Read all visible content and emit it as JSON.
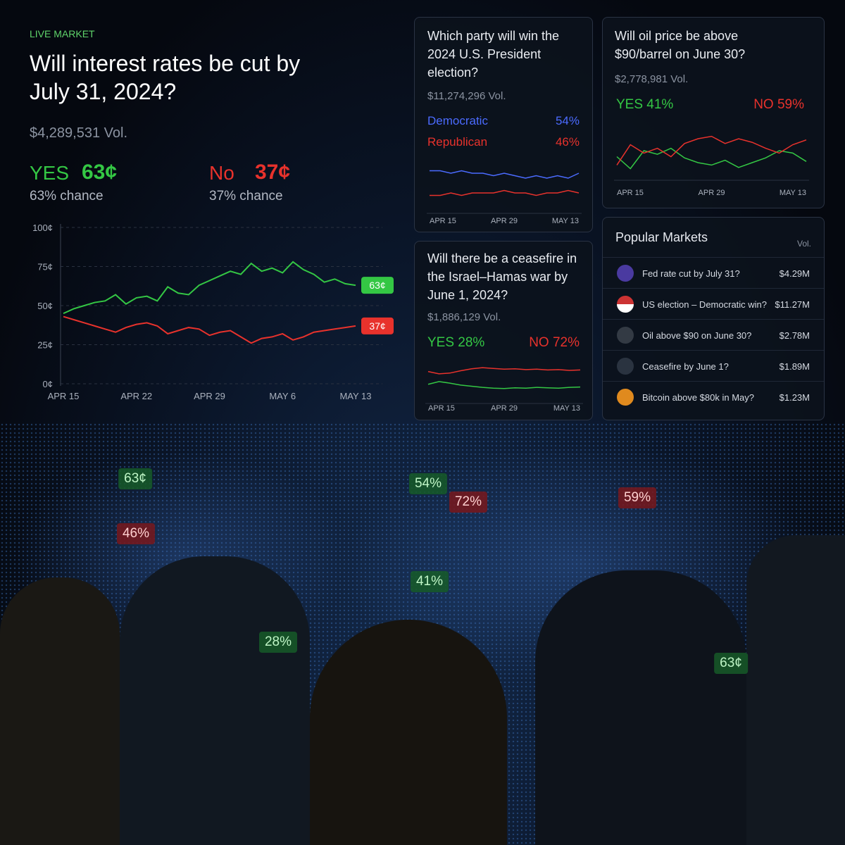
{
  "header": {
    "tag": "LIVE MARKET",
    "title": "Will interest rates be cut by July 31, 2024?",
    "volume": "$4,289,531 Vol.",
    "yes": {
      "label": "YES",
      "price": "63¢",
      "chance": "63% chance"
    },
    "no": {
      "label": "No",
      "price": "37¢",
      "chance": "37% chance"
    }
  },
  "cards": [
    {
      "title": "Which party will win the 2024 U.S. President election?",
      "volume": "$11,274,296 Vol."
    },
    {
      "title": "Will oil price be above $90/barrel on June 30?",
      "volume": "$2,778,981 Vol.",
      "yes": "YES 41%",
      "no": "NO 59%"
    },
    {
      "title": "Will there be a ceasefire in the Israel–Hamas war by June 1, 2024?",
      "volume": "$1,886,129 Vol.",
      "yes": "YES 28%",
      "no": "NO 72%"
    }
  ],
  "popular": {
    "title": "Popular Markets",
    "vol_header": "Vol.",
    "rows": [
      {
        "name": "Fed rate cut by July 31?",
        "vol": "$4.29M"
      },
      {
        "name": "US election – Democratic win?",
        "vol": "$11.27M"
      },
      {
        "name": "Oil above $90 on June 30?",
        "vol": "$2.78M"
      },
      {
        "name": "Ceasefire by June 1?",
        "vol": "$1.89M"
      },
      {
        "name": "Bitcoin above $80k in May?",
        "vol": "$1.23M"
      }
    ]
  },
  "map_badges": [
    {
      "label": "63¢",
      "tone": "green"
    },
    {
      "label": "54%",
      "tone": "green"
    },
    {
      "label": "72%",
      "tone": "red"
    },
    {
      "label": "59%",
      "tone": "red"
    },
    {
      "label": "46%",
      "tone": "red"
    },
    {
      "label": "41%",
      "tone": "green"
    },
    {
      "label": "28%",
      "tone": "green"
    },
    {
      "label": "63¢",
      "tone": "green"
    }
  ],
  "chart_data": [
    {
      "type": "line",
      "categories": [
        "APR 15",
        null,
        null,
        null,
        null,
        null,
        null,
        "APR 22",
        null,
        null,
        null,
        null,
        null,
        null,
        "APR 29",
        null,
        null,
        null,
        null,
        null,
        null,
        "MAY 6",
        null,
        null,
        null,
        null,
        null,
        null,
        "MAY 13"
      ],
      "ylim": [
        0,
        100
      ],
      "yticks": [
        {
          "value": 0,
          "label": "0¢"
        },
        {
          "value": 25,
          "label": "25¢"
        },
        {
          "value": 50,
          "label": "50¢"
        },
        {
          "value": 75,
          "label": "75¢"
        },
        {
          "value": 100,
          "label": "100¢"
        }
      ],
      "grid": true,
      "series": [
        {
          "color": "#34c744",
          "end_label": "63¢",
          "values": [
            45,
            48,
            50,
            52,
            53,
            57,
            51,
            55,
            56,
            53,
            62,
            58,
            57,
            63,
            66,
            69,
            72,
            70,
            77,
            72,
            74,
            71,
            78,
            73,
            70,
            65,
            67,
            64,
            63
          ]
        },
        {
          "color": "#e8322c",
          "end_label": "37¢",
          "values": [
            43,
            41,
            39,
            37,
            35,
            33,
            36,
            38,
            39,
            37,
            32,
            34,
            36,
            35,
            31,
            33,
            34,
            30,
            26,
            29,
            30,
            32,
            28,
            30,
            33,
            34,
            35,
            36,
            37
          ]
        }
      ]
    },
    {
      "type": "line",
      "categories": [
        "APR 15",
        null,
        null,
        null,
        null,
        null,
        null,
        "APR 29",
        null,
        null,
        null,
        null,
        null,
        null,
        "MAY 13"
      ],
      "ylim": [
        40,
        60
      ],
      "series": [
        {
          "name": "Democratic",
          "current": "54%",
          "color": "#4b6bff",
          "values": [
            55,
            55,
            54,
            55,
            54,
            54,
            53,
            54,
            53,
            52,
            53,
            52,
            53,
            52,
            54
          ]
        },
        {
          "name": "Republican",
          "current": "46%",
          "color": "#e8322c",
          "values": [
            45,
            45,
            46,
            45,
            46,
            46,
            46,
            47,
            46,
            46,
            45,
            46,
            46,
            47,
            46
          ]
        }
      ]
    },
    {
      "type": "line",
      "categories": [
        "APR 15",
        null,
        null,
        null,
        null,
        null,
        null,
        "APR 29",
        null,
        null,
        null,
        null,
        null,
        null,
        "MAY 13"
      ],
      "ylim": [
        30,
        70
      ],
      "series": [
        {
          "color": "#34c744",
          "values": [
            45,
            35,
            50,
            47,
            52,
            44,
            40,
            38,
            42,
            36,
            40,
            44,
            50,
            48,
            41
          ]
        },
        {
          "color": "#e8322c",
          "values": [
            38,
            55,
            48,
            52,
            45,
            56,
            60,
            62,
            56,
            60,
            57,
            52,
            48,
            55,
            59
          ]
        }
      ]
    },
    {
      "type": "line",
      "categories": [
        "APR 15",
        null,
        null,
        null,
        null,
        null,
        null,
        "APR 29",
        null,
        null,
        null,
        null,
        null,
        null,
        "MAY 13"
      ],
      "ylim": [
        0,
        100
      ],
      "series": [
        {
          "color": "#34c744",
          "values": [
            35,
            42,
            38,
            33,
            30,
            27,
            25,
            24,
            26,
            25,
            27,
            26,
            25,
            27,
            28
          ]
        },
        {
          "color": "#e8322c",
          "values": [
            68,
            62,
            64,
            70,
            75,
            78,
            76,
            74,
            75,
            73,
            74,
            72,
            73,
            71,
            72
          ]
        }
      ]
    }
  ]
}
